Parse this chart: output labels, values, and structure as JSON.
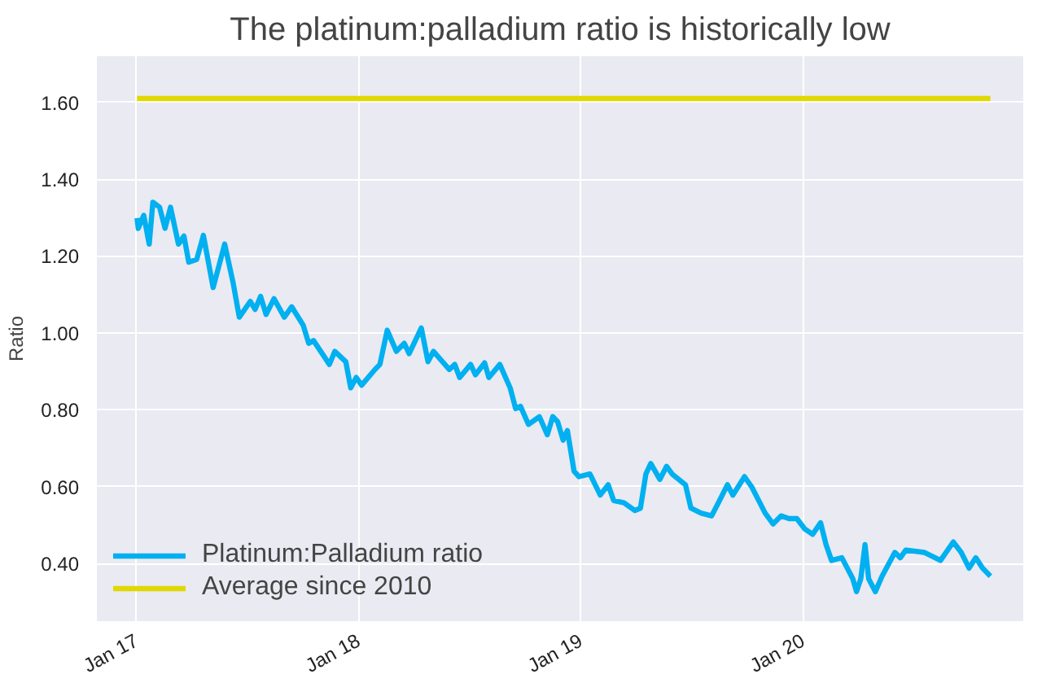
{
  "chart_data": {
    "type": "line",
    "title": "The platinum:palladium ratio is historically low",
    "ylabel": "Ratio",
    "xlim": [
      "2016-10-28",
      "2020-12-28"
    ],
    "ylim": [
      0.25,
      1.72
    ],
    "xticks": [
      {
        "value": "2017-01-01",
        "label": "Jan 17"
      },
      {
        "value": "2018-01-01",
        "label": "Jan 18"
      },
      {
        "value": "2019-01-01",
        "label": "Jan 19"
      },
      {
        "value": "2020-01-01",
        "label": "Jan 20"
      }
    ],
    "yticks": [
      {
        "value": 0.4,
        "label": "0.40"
      },
      {
        "value": 0.6,
        "label": "0.60"
      },
      {
        "value": 0.8,
        "label": "0.80"
      },
      {
        "value": 1.0,
        "label": "1.00"
      },
      {
        "value": 1.2,
        "label": "1.20"
      },
      {
        "value": 1.4,
        "label": "1.40"
      },
      {
        "value": 1.6,
        "label": "1.60"
      }
    ],
    "grid": true,
    "legend": "bottom left",
    "line_style": "solid",
    "marker": "none",
    "series": [
      {
        "name": "Platinum:Palladium ratio",
        "color": "#00b0f0",
        "x": [
          "2017-01-02",
          "2017-01-04",
          "2017-01-13",
          "2017-01-22",
          "2017-01-28",
          "2017-02-08",
          "2017-02-17",
          "2017-02-26",
          "2017-03-11",
          "2017-03-20",
          "2017-03-28",
          "2017-04-10",
          "2017-04-21",
          "2017-05-07",
          "2017-05-26",
          "2017-06-09",
          "2017-06-19",
          "2017-07-07",
          "2017-07-15",
          "2017-07-24",
          "2017-08-02",
          "2017-08-15",
          "2017-09-01",
          "2017-09-13",
          "2017-10-02",
          "2017-10-11",
          "2017-10-19",
          "2017-11-14",
          "2017-11-23",
          "2017-12-11",
          "2017-12-19",
          "2017-12-28",
          "2018-01-06",
          "2018-01-28",
          "2018-02-05",
          "2018-02-17",
          "2018-03-04",
          "2018-03-17",
          "2018-03-25",
          "2018-04-14",
          "2018-04-25",
          "2018-05-04",
          "2018-05-30",
          "2018-06-08",
          "2018-06-16",
          "2018-07-04",
          "2018-07-12",
          "2018-07-27",
          "2018-08-03",
          "2018-08-21",
          "2018-09-07",
          "2018-09-16",
          "2018-09-24",
          "2018-10-07",
          "2018-10-25",
          "2018-11-07",
          "2018-11-16",
          "2018-11-24",
          "2018-12-03",
          "2018-12-10",
          "2018-12-21",
          "2018-12-29",
          "2019-01-16",
          "2019-02-02",
          "2019-02-15",
          "2019-02-24",
          "2019-03-13",
          "2019-03-31",
          "2019-04-09",
          "2019-04-18",
          "2019-04-26",
          "2019-05-11",
          "2019-05-22",
          "2019-05-31",
          "2019-06-22",
          "2019-07-01",
          "2019-07-18",
          "2019-08-04",
          "2019-08-17",
          "2019-08-30",
          "2019-09-08",
          "2019-09-27",
          "2019-10-09",
          "2019-10-31",
          "2019-11-13",
          "2019-11-26",
          "2019-12-09",
          "2019-12-22",
          "2020-01-04",
          "2020-01-17",
          "2020-01-30",
          "2020-02-08",
          "2020-02-17",
          "2020-03-05",
          "2020-03-23",
          "2020-03-29",
          "2020-04-05",
          "2020-04-12",
          "2020-04-18",
          "2020-04-29",
          "2020-05-10",
          "2020-05-31",
          "2020-06-09",
          "2020-06-18",
          "2020-07-18",
          "2020-08-14",
          "2020-09-04",
          "2020-09-17",
          "2020-09-30",
          "2020-10-11",
          "2020-10-22",
          "2020-11-04"
        ],
        "values": [
          1.299,
          1.272,
          1.306,
          1.231,
          1.34,
          1.327,
          1.272,
          1.327,
          1.231,
          1.252,
          1.184,
          1.191,
          1.254,
          1.118,
          1.231,
          1.129,
          1.041,
          1.082,
          1.061,
          1.095,
          1.048,
          1.089,
          1.041,
          1.068,
          1.02,
          0.973,
          0.98,
          0.918,
          0.952,
          0.925,
          0.857,
          0.884,
          0.864,
          0.905,
          0.918,
          1.007,
          0.952,
          0.973,
          0.946,
          1.013,
          0.925,
          0.952,
          0.905,
          0.918,
          0.884,
          0.918,
          0.891,
          0.922,
          0.884,
          0.918,
          0.857,
          0.803,
          0.809,
          0.762,
          0.782,
          0.735,
          0.782,
          0.769,
          0.721,
          0.746,
          0.64,
          0.626,
          0.633,
          0.578,
          0.605,
          0.564,
          0.558,
          0.538,
          0.544,
          0.633,
          0.66,
          0.619,
          0.653,
          0.633,
          0.605,
          0.544,
          0.531,
          0.524,
          0.564,
          0.605,
          0.578,
          0.626,
          0.599,
          0.531,
          0.503,
          0.524,
          0.517,
          0.517,
          0.49,
          0.476,
          0.506,
          0.449,
          0.408,
          0.415,
          0.36,
          0.327,
          0.36,
          0.449,
          0.36,
          0.327,
          0.367,
          0.429,
          0.415,
          0.435,
          0.429,
          0.408,
          0.456,
          0.429,
          0.388,
          0.415,
          0.388,
          0.367
        ]
      },
      {
        "name": "Average since 2010",
        "color": "#e0d800",
        "x": [
          "2017-01-02",
          "2020-11-04"
        ],
        "values": [
          1.61,
          1.61
        ]
      }
    ]
  }
}
